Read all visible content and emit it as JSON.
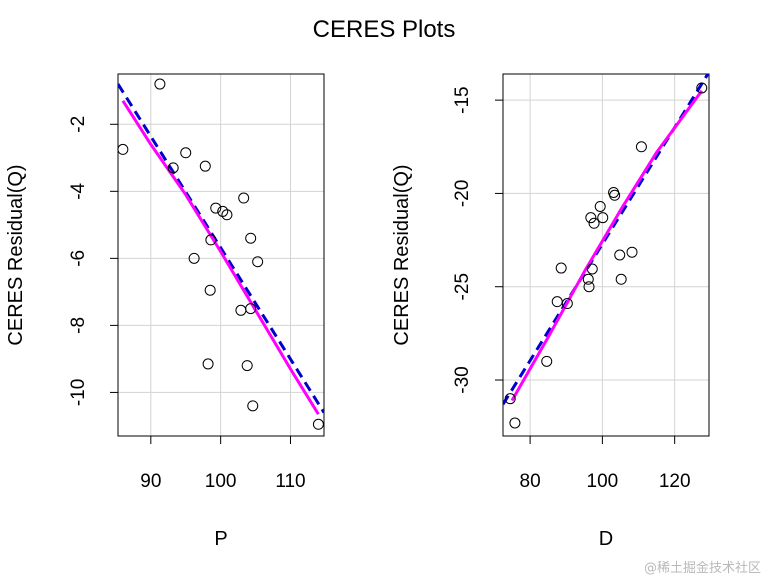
{
  "title": "CERES Plots",
  "watermark": "@稀土掘金技术社区",
  "colors": {
    "points": "#000000",
    "grid": "#d3d3d3",
    "regression_line": "#0000cc",
    "smooth_line": "#ff00ff",
    "frame": "#000000"
  },
  "chart_data": [
    {
      "type": "scatter",
      "xlabel": "P",
      "ylabel": "CERES Residual(Q)",
      "xlim": [
        85.3,
        114.8
      ],
      "ylim": [
        -11.3,
        -0.5
      ],
      "xticks": [
        90,
        100,
        110
      ],
      "yticks": [
        -10,
        -8,
        -6,
        -4,
        -2
      ],
      "grid": true,
      "points": [
        {
          "x": 86,
          "y": -2.75
        },
        {
          "x": 91.3,
          "y": -0.8
        },
        {
          "x": 93.2,
          "y": -3.3
        },
        {
          "x": 95,
          "y": -2.85
        },
        {
          "x": 96.2,
          "y": -6.0
        },
        {
          "x": 97.8,
          "y": -3.25
        },
        {
          "x": 98.2,
          "y": -9.15
        },
        {
          "x": 98.5,
          "y": -6.95
        },
        {
          "x": 98.6,
          "y": -5.45
        },
        {
          "x": 99.3,
          "y": -4.5
        },
        {
          "x": 100.3,
          "y": -4.6
        },
        {
          "x": 100.9,
          "y": -4.7
        },
        {
          "x": 103.3,
          "y": -4.2
        },
        {
          "x": 102.9,
          "y": -7.55
        },
        {
          "x": 103.8,
          "y": -9.2
        },
        {
          "x": 104.3,
          "y": -7.5
        },
        {
          "x": 104.3,
          "y": -5.4
        },
        {
          "x": 104.6,
          "y": -10.4
        },
        {
          "x": 105.3,
          "y": -6.1
        },
        {
          "x": 114,
          "y": -10.95
        }
      ],
      "regression_line": {
        "x": [
          85.3,
          114.8
        ],
        "y": [
          -0.8,
          -10.6
        ]
      },
      "smooth_line": {
        "x": [
          86,
          90,
          95,
          100,
          105,
          110,
          114
        ],
        "y": [
          -1.3,
          -2.6,
          -4.1,
          -5.8,
          -7.55,
          -9.3,
          -10.65
        ]
      }
    },
    {
      "type": "scatter",
      "xlabel": "D",
      "ylabel": "CERES Residual(Q)",
      "xlim": [
        72.5,
        129.5
      ],
      "ylim": [
        -33.0,
        -13.6
      ],
      "xticks": [
        80,
        100,
        120
      ],
      "yticks": [
        -30,
        -25,
        -20,
        -15
      ],
      "grid": true,
      "points": [
        {
          "x": 74.5,
          "y": -31.0
        },
        {
          "x": 75.8,
          "y": -32.3
        },
        {
          "x": 84.6,
          "y": -29.0
        },
        {
          "x": 87.5,
          "y": -25.8
        },
        {
          "x": 88.6,
          "y": -24.0
        },
        {
          "x": 90.3,
          "y": -25.9
        },
        {
          "x": 96.1,
          "y": -24.6
        },
        {
          "x": 96.3,
          "y": -25.0
        },
        {
          "x": 96.8,
          "y": -21.3
        },
        {
          "x": 97.2,
          "y": -24.05
        },
        {
          "x": 97.7,
          "y": -21.6
        },
        {
          "x": 99.4,
          "y": -20.7
        },
        {
          "x": 100.1,
          "y": -21.3
        },
        {
          "x": 103.1,
          "y": -19.95
        },
        {
          "x": 103.4,
          "y": -20.1
        },
        {
          "x": 104.8,
          "y": -23.3
        },
        {
          "x": 105.2,
          "y": -24.6
        },
        {
          "x": 108.2,
          "y": -23.15
        },
        {
          "x": 110.8,
          "y": -17.5
        },
        {
          "x": 127.5,
          "y": -14.35
        }
      ],
      "regression_line": {
        "x": [
          72.5,
          129.5
        ],
        "y": [
          -31.3,
          -13.5
        ]
      },
      "smooth_line": {
        "x": [
          75,
          85,
          95,
          105,
          115,
          127.5
        ],
        "y": [
          -31.1,
          -27.7,
          -24.2,
          -20.9,
          -17.8,
          -14.5
        ]
      }
    }
  ]
}
